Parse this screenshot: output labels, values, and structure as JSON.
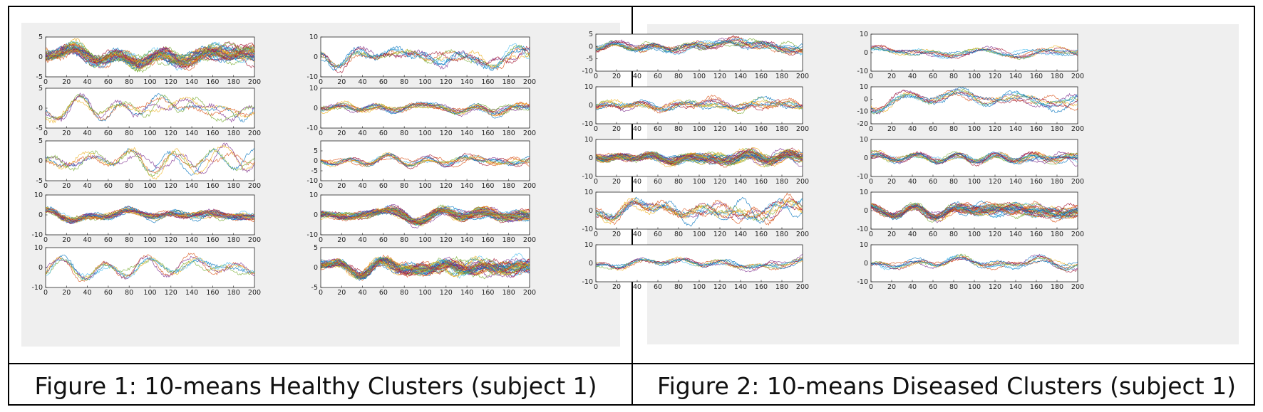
{
  "captions": [
    "Figure 1: 10-means Healthy Clusters (subject 1)",
    "Figure 2: 10-means Diseased Clusters (subject 1)"
  ],
  "colors": {
    "panel_background": "#efefef",
    "axes_background": "#ffffff",
    "series": [
      "#0072BD",
      "#D95319",
      "#EDB120",
      "#7E2F8E",
      "#77AC30",
      "#4DBEEE",
      "#A2142F"
    ]
  },
  "chart_data": [
    {
      "type": "line",
      "figure": "Figure 1: 10-means Healthy Clusters (subject 1)",
      "layout": "5 rows x 2 columns of subplots",
      "x_range": [
        0,
        200
      ],
      "x_ticks": [
        0,
        20,
        40,
        60,
        80,
        100,
        120,
        140,
        160,
        180,
        200
      ],
      "subplots": [
        {
          "ylim": [
            -5,
            5
          ],
          "yticks": [
            5,
            0,
            -5
          ],
          "approx_amplitude": 2.5,
          "approx_series_count": 40
        },
        {
          "ylim": [
            -10,
            10
          ],
          "yticks": [
            10,
            0,
            -10
          ],
          "approx_amplitude": 5,
          "approx_series_count": 8
        },
        {
          "ylim": [
            -5,
            5
          ],
          "yticks": [
            5,
            0,
            -5
          ],
          "approx_amplitude": 2.5,
          "approx_series_count": 5
        },
        {
          "ylim": [
            -10,
            10
          ],
          "yticks": [
            10,
            0,
            -10
          ],
          "approx_amplitude": 3,
          "approx_series_count": 12
        },
        {
          "ylim": [
            -5,
            5
          ],
          "yticks": [
            5,
            0,
            -5
          ],
          "approx_amplitude": 2.5,
          "approx_series_count": 5
        },
        {
          "ylim": [
            -10,
            10
          ],
          "yticks": [
            5,
            0,
            -5,
            -10
          ],
          "approx_amplitude": 2.5,
          "approx_series_count": 10
        },
        {
          "ylim": [
            -10,
            10
          ],
          "yticks": [
            10,
            0,
            -10
          ],
          "approx_amplitude": 3,
          "approx_series_count": 25
        },
        {
          "ylim": [
            -10,
            10
          ],
          "yticks": [
            10,
            0,
            -10
          ],
          "approx_amplitude": 3,
          "approx_series_count": 40
        },
        {
          "ylim": [
            -10,
            10
          ],
          "yticks": [
            10,
            0,
            -10
          ],
          "approx_amplitude": 4,
          "approx_series_count": 6
        },
        {
          "ylim": [
            -5,
            5
          ],
          "yticks": [
            5,
            0,
            -5
          ],
          "approx_amplitude": 2,
          "approx_series_count": 40
        }
      ]
    },
    {
      "type": "line",
      "figure": "Figure 2: 10-means Diseased Clusters (subject 1)",
      "layout": "5 rows x 2 columns of subplots",
      "x_range": [
        0,
        200
      ],
      "x_ticks": [
        0,
        20,
        40,
        60,
        80,
        100,
        120,
        140,
        160,
        180,
        200
      ],
      "subplots": [
        {
          "ylim": [
            -10,
            5
          ],
          "yticks": [
            5,
            0,
            -5,
            -10
          ],
          "approx_amplitude": 2.5,
          "approx_series_count": 15
        },
        {
          "ylim": [
            -10,
            10
          ],
          "yticks": [
            10,
            0,
            -10
          ],
          "approx_amplitude": 3,
          "approx_series_count": 8
        },
        {
          "ylim": [
            -10,
            10
          ],
          "yticks": [
            10,
            0,
            -10
          ],
          "approx_amplitude": 4,
          "approx_series_count": 10
        },
        {
          "ylim": [
            -20,
            10
          ],
          "yticks": [
            10,
            0,
            -10,
            -20
          ],
          "approx_amplitude": 6,
          "approx_series_count": 8
        },
        {
          "ylim": [
            -10,
            10
          ],
          "yticks": [
            10,
            0,
            -10
          ],
          "approx_amplitude": 3,
          "approx_series_count": 40
        },
        {
          "ylim": [
            -10,
            10
          ],
          "yticks": [
            10,
            0,
            -10
          ],
          "approx_amplitude": 3,
          "approx_series_count": 15
        },
        {
          "ylim": [
            -10,
            10
          ],
          "yticks": [
            10,
            0,
            -10
          ],
          "approx_amplitude": 5,
          "approx_series_count": 10
        },
        {
          "ylim": [
            -10,
            10
          ],
          "yticks": [
            10,
            0,
            -10
          ],
          "approx_amplitude": 3.5,
          "approx_series_count": 30
        },
        {
          "ylim": [
            -10,
            10
          ],
          "yticks": [
            10,
            0,
            -10
          ],
          "approx_amplitude": 3,
          "approx_series_count": 8
        },
        {
          "ylim": [
            -10,
            10
          ],
          "yticks": [
            10,
            0,
            -10
          ],
          "approx_amplitude": 3,
          "approx_series_count": 8
        }
      ]
    }
  ]
}
